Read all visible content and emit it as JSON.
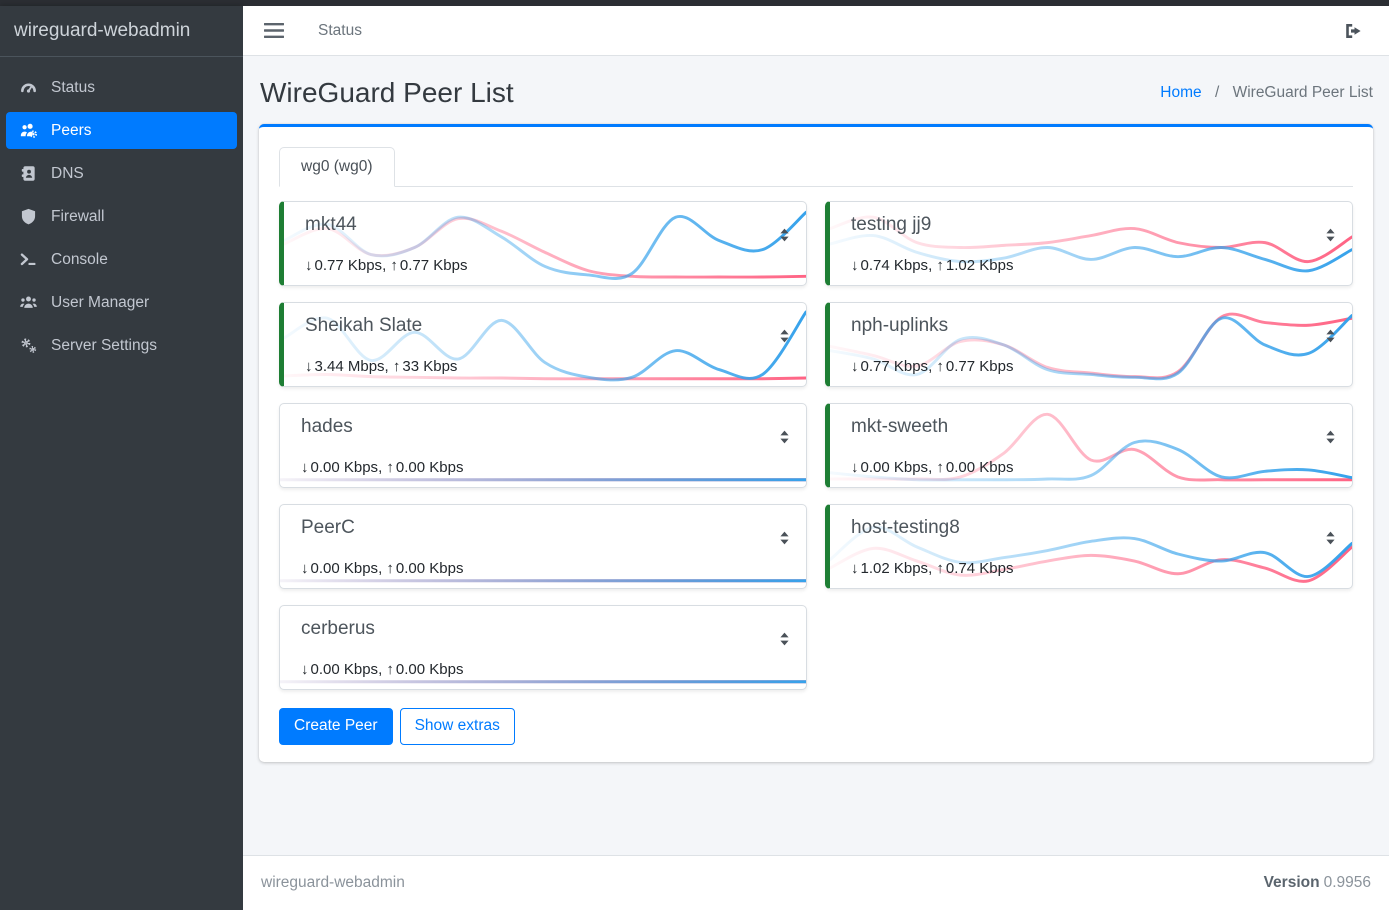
{
  "app": {
    "brand": "wireguard-webadmin",
    "top_nav_link": "Status"
  },
  "sidebar": {
    "items": [
      {
        "label": "Status",
        "icon": "gauge-icon",
        "active": false
      },
      {
        "label": "Peers",
        "icon": "users-gear-icon",
        "active": true
      },
      {
        "label": "DNS",
        "icon": "address-book-icon",
        "active": false
      },
      {
        "label": "Firewall",
        "icon": "shield-icon",
        "active": false
      },
      {
        "label": "Console",
        "icon": "terminal-icon",
        "active": false
      },
      {
        "label": "User Manager",
        "icon": "users-icon",
        "active": false
      },
      {
        "label": "Server Settings",
        "icon": "gears-icon",
        "active": false
      }
    ]
  },
  "page": {
    "title": "WireGuard Peer List",
    "breadcrumb": {
      "home": "Home",
      "separator": "/",
      "current": "WireGuard Peer List"
    }
  },
  "tabs": [
    {
      "label": "wg0 (wg0)",
      "active": true
    }
  ],
  "buttons": {
    "create_peer": "Create Peer",
    "show_extras": "Show extras"
  },
  "footer": {
    "left": "wireguard-webadmin",
    "version_label": "Version",
    "version_value": "0.9956"
  },
  "icons": {
    "down_arrow": "↓",
    "up_arrow": "↑"
  },
  "colors": {
    "accent": "#007bff",
    "connected_green": "#1e7e34",
    "spark_rx_blue": "#36a2eb",
    "spark_tx_pink": "#ff6384",
    "sidebar_bg": "#343a40"
  },
  "peers": [
    {
      "name": "mkt44",
      "down": "0.77 Kbps",
      "up": "0.77 Kbps",
      "connected": true,
      "sparkline": {
        "rx": [
          0.55,
          0.78,
          0.35,
          0.45,
          0.88,
          0.6,
          0.18,
          0.06,
          0.08,
          0.88,
          0.55,
          0.42,
          0.95
        ],
        "tx": [
          0.5,
          0.72,
          0.35,
          0.45,
          0.86,
          0.68,
          0.38,
          0.12,
          0.04,
          0.03,
          0.03,
          0.03,
          0.04
        ]
      }
    },
    {
      "name": "testing jj9",
      "down": "0.74 Kbps",
      "up": "1.02 Kbps",
      "connected": true,
      "sparkline": {
        "rx": [
          0.5,
          0.62,
          0.38,
          0.25,
          0.3,
          0.45,
          0.28,
          0.45,
          0.32,
          0.45,
          0.28,
          0.12,
          0.42
        ],
        "tx": [
          0.72,
          0.88,
          0.52,
          0.45,
          0.48,
          0.52,
          0.62,
          0.72,
          0.52,
          0.45,
          0.52,
          0.25,
          0.6
        ]
      }
    },
    {
      "name": "Sheikah Slate",
      "down": "3.44 Mbps",
      "up": "33 Kbps",
      "connected": true,
      "sparkline": {
        "rx": [
          0.6,
          0.88,
          0.28,
          0.68,
          0.3,
          0.85,
          0.25,
          0.04,
          0.04,
          0.42,
          0.15,
          0.08,
          0.97
        ],
        "tx": [
          0.06,
          0.08,
          0.05,
          0.04,
          0.03,
          0.03,
          0.02,
          0.02,
          0.02,
          0.02,
          0.02,
          0.02,
          0.03
        ]
      }
    },
    {
      "name": "nph-uplinks",
      "down": "0.77 Kbps",
      "up": "0.77 Kbps",
      "connected": true,
      "sparkline": {
        "rx": [
          0.42,
          0.3,
          0.08,
          0.58,
          0.5,
          0.15,
          0.08,
          0.04,
          0.1,
          0.88,
          0.5,
          0.38,
          0.92
        ],
        "tx": [
          0.48,
          0.35,
          0.2,
          0.55,
          0.5,
          0.18,
          0.1,
          0.05,
          0.12,
          0.9,
          0.82,
          0.78,
          0.88
        ]
      }
    },
    {
      "name": "hades",
      "down": "0.00 Kbps",
      "up": "0.00 Kbps",
      "connected": false,
      "sparkline": {
        "rx": [
          0.02,
          0.02,
          0.02,
          0.02,
          0.02,
          0.02,
          0.02,
          0.02,
          0.02,
          0.02,
          0.02,
          0.02,
          0.02
        ],
        "tx": [
          0.02,
          0.02,
          0.02,
          0.02,
          0.02,
          0.02,
          0.02,
          0.02,
          0.02,
          0.02,
          0.02,
          0.02,
          0.02
        ]
      }
    },
    {
      "name": "mkt-sweeth",
      "down": "0.00 Kbps",
      "up": "0.00 Kbps",
      "connected": true,
      "sparkline": {
        "rx": [
          0.12,
          0.06,
          0.02,
          0.02,
          0.02,
          0.03,
          0.08,
          0.55,
          0.45,
          0.06,
          0.14,
          0.16,
          0.05
        ],
        "tx": [
          0.03,
          0.03,
          0.03,
          0.06,
          0.4,
          0.95,
          0.3,
          0.45,
          0.06,
          0.02,
          0.02,
          0.02,
          0.02
        ]
      }
    },
    {
      "name": "PeerC",
      "down": "0.00 Kbps",
      "up": "0.00 Kbps",
      "connected": false,
      "sparkline": {
        "rx": [
          0.02,
          0.02,
          0.02,
          0.02,
          0.02,
          0.02,
          0.02,
          0.02,
          0.02,
          0.02,
          0.02,
          0.02,
          0.02
        ],
        "tx": [
          0.02,
          0.02,
          0.02,
          0.02,
          0.02,
          0.02,
          0.02,
          0.02,
          0.02,
          0.02,
          0.02,
          0.02,
          0.02
        ]
      }
    },
    {
      "name": "host-testing8",
      "down": "1.02 Kbps",
      "up": "0.74 Kbps",
      "connected": true,
      "sparkline": {
        "rx": [
          0.32,
          0.78,
          0.5,
          0.28,
          0.35,
          0.45,
          0.58,
          0.62,
          0.4,
          0.3,
          0.42,
          0.08,
          0.55
        ],
        "tx": [
          0.2,
          0.48,
          0.3,
          0.1,
          0.18,
          0.3,
          0.38,
          0.3,
          0.12,
          0.32,
          0.2,
          0.02,
          0.5
        ]
      }
    },
    {
      "name": "cerberus",
      "down": "0.00 Kbps",
      "up": "0.00 Kbps",
      "connected": false,
      "sparkline": {
        "rx": [
          0.02,
          0.02,
          0.02,
          0.02,
          0.02,
          0.02,
          0.02,
          0.02,
          0.02,
          0.02,
          0.02,
          0.02,
          0.02
        ],
        "tx": [
          0.02,
          0.02,
          0.02,
          0.02,
          0.02,
          0.02,
          0.02,
          0.02,
          0.02,
          0.02,
          0.02,
          0.02,
          0.02
        ]
      }
    }
  ]
}
